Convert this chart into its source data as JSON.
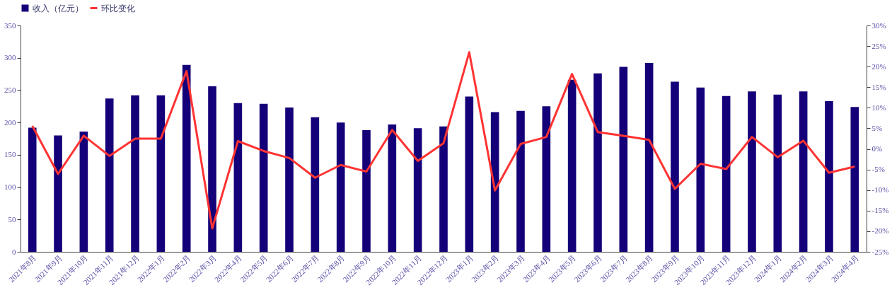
{
  "chart_data": {
    "type": "bar",
    "categories": [
      "2021年8月",
      "2021年9月",
      "2021年10月",
      "2021年11月",
      "2021年12月",
      "2022年1月",
      "2022年2月",
      "2022年3月",
      "2022年4月",
      "2022年5月",
      "2022年6月",
      "2022年7月",
      "2022年8月",
      "2022年9月",
      "2022年10月",
      "2022年11月",
      "2022年12月",
      "2023年1月",
      "2023年2月",
      "2023年3月",
      "2023年4月",
      "2023年5月",
      "2023年6月",
      "2023年7月",
      "2023年8月",
      "2023年9月",
      "2023年10月",
      "2023年11月",
      "2023年12月",
      "2024年1月",
      "2024年2月",
      "2024年3月",
      "2024年4月"
    ],
    "series": [
      {
        "name": "收入（亿元）",
        "color": "#140078",
        "values": [
          192,
          180,
          186,
          237,
          242,
          242,
          289,
          256,
          230,
          229,
          223,
          208,
          200,
          188,
          197,
          191,
          194,
          240,
          216,
          218,
          225,
          266,
          276,
          286,
          292,
          263,
          254,
          241,
          248,
          243,
          248,
          233,
          224
        ]
      },
      {
        "name": "环比变化",
        "type": "line",
        "axis": "y2",
        "color": "#ff3333",
        "values": [
          5.6,
          -6.1,
          3.2,
          -1.7,
          2.5,
          2.5,
          18.9,
          -19.3,
          1.9,
          -0.5,
          -2.2,
          -7.0,
          -3.9,
          -5.5,
          4.6,
          -2.9,
          1.4,
          23.5,
          -10.1,
          1.2,
          2.9,
          18.2,
          4.1,
          3.2,
          2.2,
          -9.7,
          -3.6,
          -4.9,
          2.9,
          -2.0,
          2.0,
          -5.8,
          -4.3
        ]
      }
    ],
    "ylim": [
      0,
      350
    ],
    "yticks": [
      0,
      50,
      100,
      150,
      200,
      250,
      300,
      350
    ],
    "y2lim": [
      -25,
      30
    ],
    "y2ticks": [
      {
        "value": -25,
        "label": "-25%"
      },
      {
        "value": -20,
        "label": "-20%"
      },
      {
        "value": -15,
        "label": "-15%"
      },
      {
        "value": -10,
        "label": "-10%"
      },
      {
        "value": -5,
        "label": "-5%"
      },
      {
        "value": 0,
        "label": "0%"
      },
      {
        "value": 5,
        "label": "5%"
      },
      {
        "value": 10,
        "label": "10%"
      },
      {
        "value": 15,
        "label": "15%"
      },
      {
        "value": 20,
        "label": "20%"
      },
      {
        "value": 25,
        "label": "25%"
      },
      {
        "value": 30,
        "label": "30%"
      }
    ],
    "grid": false,
    "legend": "top",
    "marker": "none",
    "line_style": "solid"
  }
}
